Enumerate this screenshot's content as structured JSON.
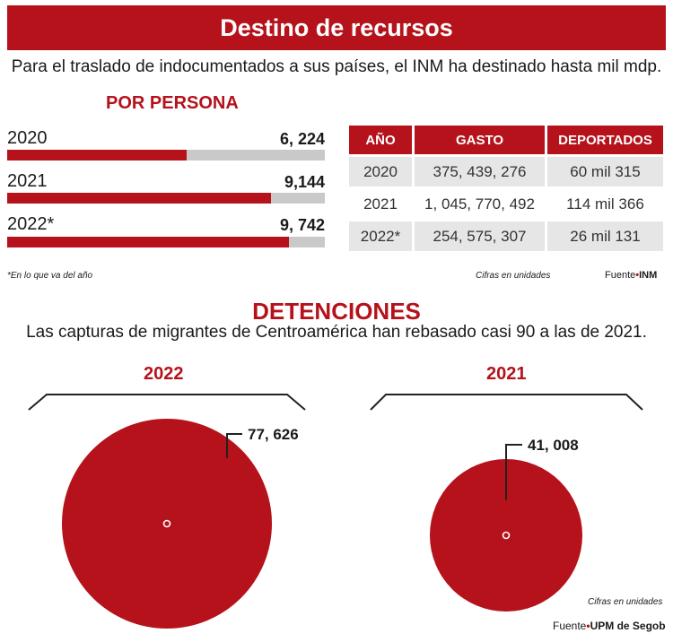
{
  "title": "Destino de recursos",
  "subtitle": "Para el traslado de indocumentados a sus países, el INM ha destinado hasta mil mdp.",
  "per_person": {
    "heading": "POR PERSONA",
    "bars": [
      {
        "year": "2020",
        "label": "6, 224",
        "value": 6224
      },
      {
        "year": "2021",
        "label": "9,144",
        "value": 9144
      },
      {
        "year": "2022*",
        "label": "9, 742",
        "value": 9742
      }
    ],
    "max": 11000
  },
  "table": {
    "headers": [
      "AÑO",
      "GASTO",
      "DEPORTADOS"
    ],
    "rows": [
      [
        "2020",
        "375, 439, 276",
        "60 mil 315"
      ],
      [
        "2021",
        "1, 045, 770, 492",
        "114 mil 366"
      ],
      [
        "2022*",
        "254, 575, 307",
        "26 mil 131"
      ]
    ]
  },
  "footnote": "*En lo que va del año",
  "units_note_1": "Cifras en unidades",
  "source_1": {
    "prefix": "Fuente",
    "dot": "•",
    "name": "INM"
  },
  "detentions": {
    "heading": "DETENCIONES",
    "subtitle": "Las capturas de migrantes de Centroamérica han rebasado casi 90 a las de 2021.",
    "groups": [
      {
        "year": "2022",
        "label": "77, 626",
        "value": 77626
      },
      {
        "year": "2021",
        "label": "41, 008",
        "value": 41008
      }
    ]
  },
  "units_note_2": "Cifras en unidades",
  "source_2": {
    "prefix": "Fuente",
    "dot": "•",
    "name": "UPM de Segob"
  },
  "chart_data": [
    {
      "type": "bar",
      "title": "POR PERSONA",
      "categories": [
        "2020",
        "2021",
        "2022*"
      ],
      "values": [
        6224,
        9144,
        9742
      ],
      "xlabel": "",
      "ylabel": ""
    },
    {
      "type": "table",
      "columns": [
        "AÑO",
        "GASTO",
        "DEPORTADOS"
      ],
      "rows": [
        [
          "2020",
          "375, 439, 276",
          "60 mil 315"
        ],
        [
          "2021",
          "1, 045, 770, 492",
          "114 mil 366"
        ],
        [
          "2022*",
          "254, 575, 307",
          "26 mil 131"
        ]
      ]
    },
    {
      "type": "bubble",
      "title": "DETENCIONES",
      "categories": [
        "2022",
        "2021"
      ],
      "values": [
        77626,
        41008
      ]
    }
  ]
}
